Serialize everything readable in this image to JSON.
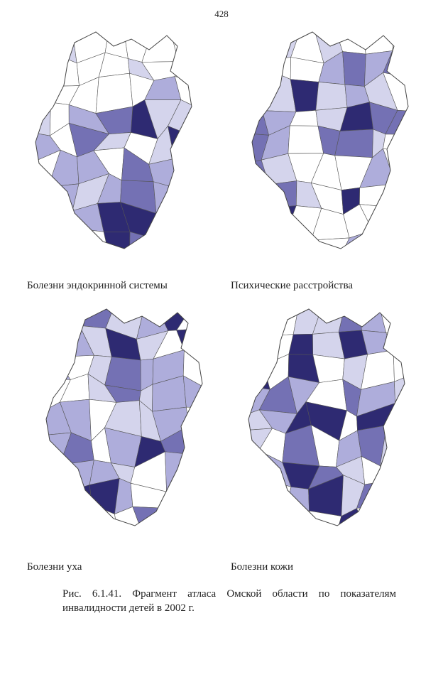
{
  "page_number": "428",
  "maps": [
    {
      "label": "Болезни эндокринной системы"
    },
    {
      "label": "Психические расстройства"
    },
    {
      "label": "Болезни уха"
    },
    {
      "label": "Болезни кожи"
    }
  ],
  "caption": "Рис. 6.1.41. Фрагмент атласа Омской области по показателям инвалидности детей в 2002 г."
}
